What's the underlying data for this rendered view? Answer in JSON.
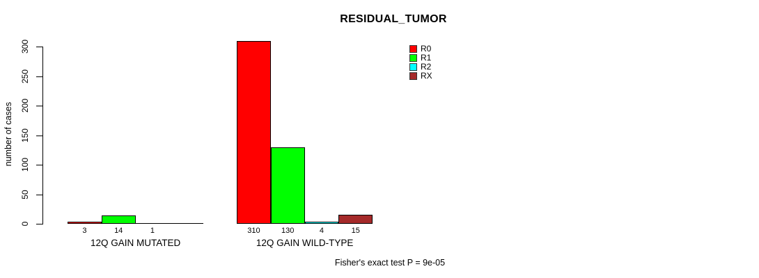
{
  "page": {
    "background": "#ffffff"
  },
  "chart_data": {
    "type": "bar",
    "title": "RESIDUAL_TUMOR",
    "ylabel": "number of cases",
    "xlabel": "",
    "ylim": [
      0,
      300
    ],
    "yticks": [
      0,
      50,
      100,
      150,
      200,
      250,
      300
    ],
    "grid": false,
    "legend_position": "top-right",
    "categories": [
      "12Q GAIN MUTATED",
      "12Q GAIN WILD-TYPE"
    ],
    "series": [
      {
        "name": "R0",
        "color": "#ff0000",
        "values": [
          3,
          310
        ]
      },
      {
        "name": "R1",
        "color": "#00ff00",
        "values": [
          14,
          130
        ]
      },
      {
        "name": "R2",
        "color": "#00ffff",
        "values": [
          1,
          4
        ]
      },
      {
        "name": "RX",
        "color": "#a52a2a",
        "values": [
          0,
          15
        ]
      }
    ],
    "bar_value_labels": [
      [
        "3",
        "14",
        "1",
        ""
      ],
      [
        "310",
        "130",
        "4",
        "15"
      ]
    ],
    "annotation": "Fisher's exact test P = 9e-05"
  }
}
